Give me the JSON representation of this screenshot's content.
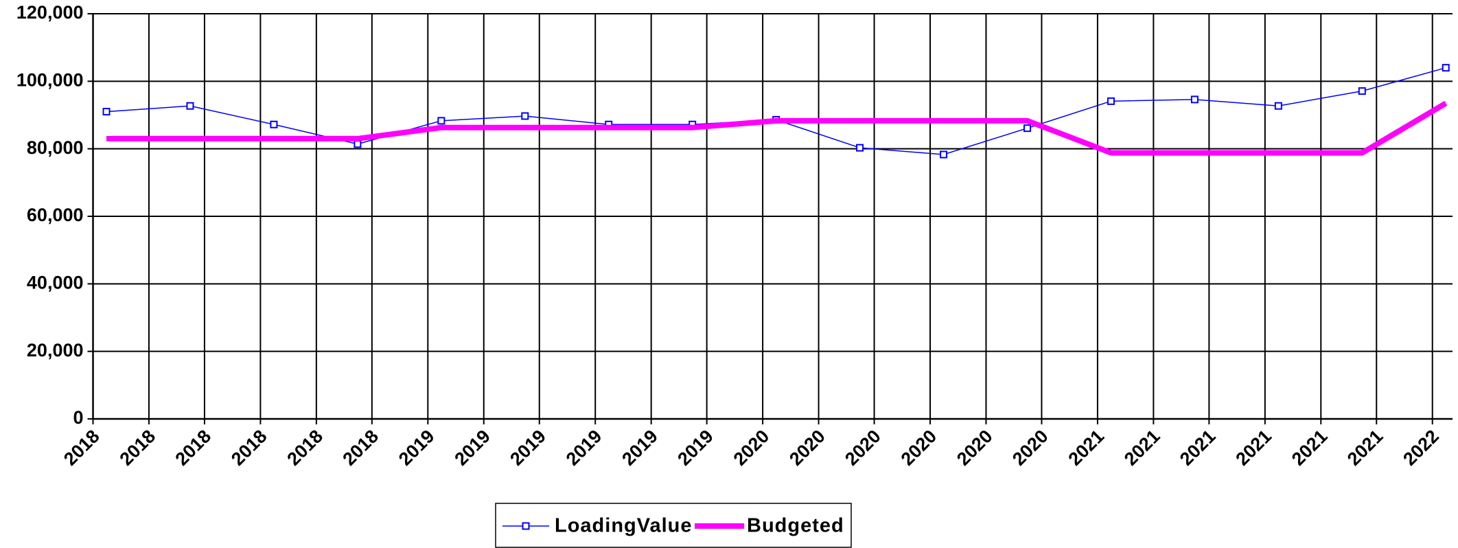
{
  "chart_data": {
    "type": "line",
    "x": [
      2018.04,
      2018.29,
      2018.54,
      2018.79,
      2019.04,
      2019.29,
      2019.54,
      2019.79,
      2020.04,
      2020.29,
      2020.54,
      2020.79,
      2021.04,
      2021.29,
      2021.54,
      2021.79,
      2022.04
    ],
    "series": [
      {
        "name": "LoadingValue",
        "color": "#0000ff",
        "values": [
          91000,
          92700,
          87200,
          81400,
          88300,
          89700,
          87200,
          87200,
          88600,
          80300,
          78300,
          86100,
          94100,
          94600,
          92700,
          97100,
          104000
        ]
      },
      {
        "name": "Budgeted",
        "color": "#ff00ff",
        "values": [
          83000,
          83000,
          83000,
          83000,
          86300,
          86300,
          86300,
          86300,
          88300,
          88300,
          88300,
          88300,
          78800,
          78800,
          78800,
          78800,
          93500
        ]
      }
    ],
    "xlim": [
      2018,
      2022.06
    ],
    "xticks": [
      2018,
      {
        "value": 2018.167,
        "label": "2018"
      },
      {
        "value": 2018.333,
        "label": "2018"
      },
      {
        "value": 2018.5,
        "label": "2018"
      },
      {
        "value": 2018.667,
        "label": "2018"
      },
      {
        "value": 2018.833,
        "label": "2018"
      },
      2019,
      {
        "value": 2019.167,
        "label": "2019"
      },
      {
        "value": 2019.333,
        "label": "2019"
      },
      {
        "value": 2019.5,
        "label": "2019"
      },
      {
        "value": 2019.667,
        "label": "2019"
      },
      {
        "value": 2019.833,
        "label": "2019"
      },
      2020,
      {
        "value": 2020.167,
        "label": "2020"
      },
      {
        "value": 2020.333,
        "label": "2020"
      },
      {
        "value": 2020.5,
        "label": "2020"
      },
      {
        "value": 2020.667,
        "label": "2020"
      },
      {
        "value": 2020.833,
        "label": "2020"
      },
      2021,
      {
        "value": 2021.167,
        "label": "2021"
      },
      {
        "value": 2021.333,
        "label": "2021"
      },
      {
        "value": 2021.5,
        "label": "2021"
      },
      {
        "value": 2021.667,
        "label": "2021"
      },
      {
        "value": 2021.833,
        "label": "2021"
      },
      2022
    ],
    "ylim": [
      0,
      120000
    ],
    "yticks": [
      0,
      {
        "value": 20000,
        "label": "20,000"
      },
      {
        "value": 40000,
        "label": "40,000"
      },
      {
        "value": 60000,
        "label": "60,000"
      },
      {
        "value": 80000,
        "label": "80,000"
      },
      {
        "value": 100000,
        "label": "100,000"
      },
      {
        "value": 120000,
        "label": "120,000"
      }
    ],
    "grid": true,
    "legend": "bottom"
  }
}
